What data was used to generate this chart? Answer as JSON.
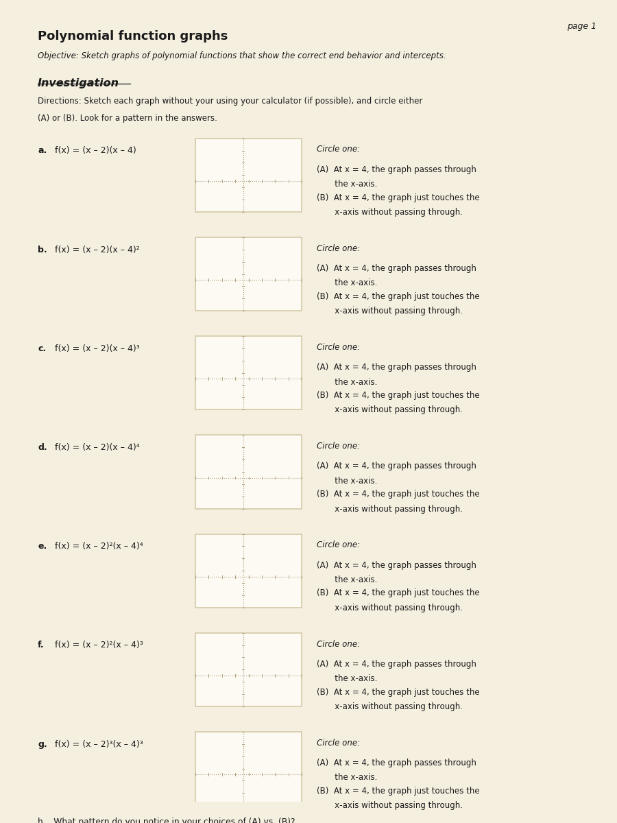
{
  "page_label": "page 1",
  "title": "Polynomial function graphs",
  "objective": "Objective: Sketch graphs of polynomial functions that show the correct end behavior and intercepts.",
  "section_title": "Investigation",
  "directions": "Directions: Sketch each graph without your using your calculator (if possible), and circle either\n(A) or (B). Look for a pattern in the answers.",
  "problems": [
    {
      "label": "a.",
      "func": "f(x) = (x – 2)(x – 4)"
    },
    {
      "label": "b.",
      "func": "f(x) = (x – 2)(x – 4)²"
    },
    {
      "label": "c.",
      "func": "f(x) = (x – 2)(x – 4)³"
    },
    {
      "label": "d.",
      "func": "f(x) = (x – 2)(x – 4)⁴"
    },
    {
      "label": "e.",
      "func": "f(x) = (x – 2)²(x – 4)⁴"
    },
    {
      "label": "f.",
      "func": "f(x) = (x – 2)²(x – 4)³"
    },
    {
      "label": "g.",
      "func": "f(x) = (x – 2)³(x – 4)³"
    }
  ],
  "circle_one_label": "Circle one:",
  "option_A_line1": "(A)  At x = 4, the graph passes through",
  "option_A_line2": "       the x-axis.",
  "option_B_line1": "(B)  At x = 4, the graph just touches the",
  "option_B_line2": "       x-axis without passing through.",
  "part_h": "h.   What pattern do you notice in your choices of (A) vs. (B)?",
  "bg_color": "#f5efe0",
  "paper_color": "#faf6ee",
  "box_color": "#d4c9a8",
  "text_color": "#1a1a1a",
  "grid_line_color": "#b0a080"
}
